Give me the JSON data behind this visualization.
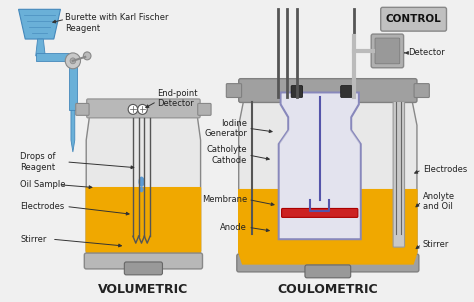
{
  "bg_color": "#f0f0f0",
  "title_vol": "VOLUMETRIC",
  "title_coul": "COULOMETRIC",
  "label_vol": {
    "burette": "Burette with Karl Fischer\nReagent",
    "endpoint": "End-point\nDetector",
    "drops": "Drops of\nReagent",
    "oil": "Oil Sample",
    "electrodes": "Electrodes",
    "stirrer": "Stirrer"
  },
  "label_coul": {
    "control": "CONTROL",
    "detector": "Detector",
    "iodine": "Iodine\nGenerator",
    "catholyte": "Catholyte\nCathode",
    "membrane": "Membrane",
    "anode": "Anode",
    "electrodes": "Electrodes",
    "anolyte": "Anolyte\nand Oil",
    "stirrer": "Stirrer"
  },
  "colors": {
    "burette_blue": "#6ab0d8",
    "oil_yellow": "#f0a800",
    "vessel_gray": "#b0b0b0",
    "vessel_cap": "#999999",
    "electrode_dark": "#444444",
    "stirrer_gray": "#888888",
    "drop_blue": "#5b9bd5",
    "inner_vessel_purple": "#8888bb",
    "inner_vessel_fill": "#d8d8ee",
    "control_box": "#aaaaaa",
    "red_membrane": "#cc2222",
    "white_bg": "#f0f0f0",
    "text_dark": "#222222",
    "arrow_color": "#333333",
    "vessel_body_fill": "#e8e8e8",
    "vessel_outline": "#888888",
    "tube_gray": "#777777",
    "detector_box": "#999999"
  }
}
